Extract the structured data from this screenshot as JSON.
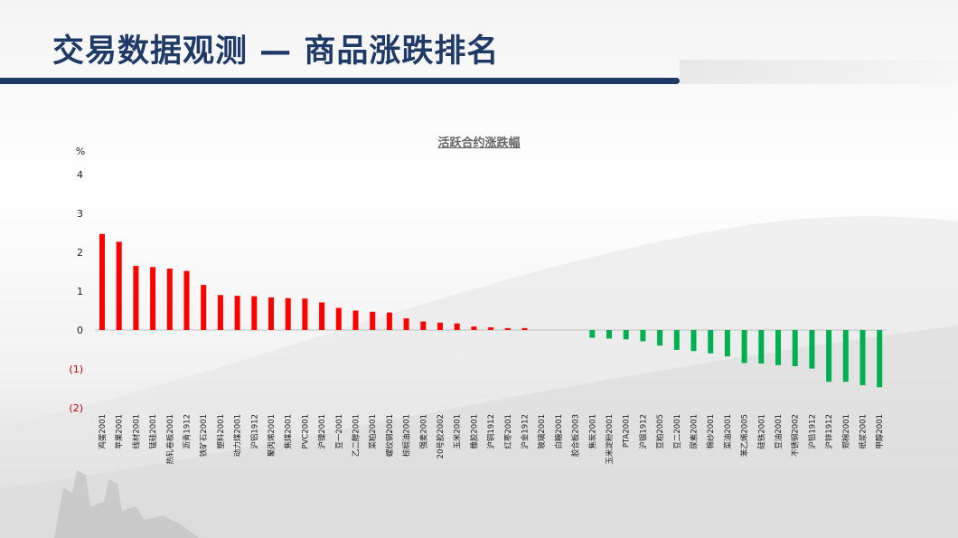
{
  "slide": {
    "title": "交易数据观测 — 商品涨跌排名"
  },
  "colors": {
    "title_blue": "#1f3a66",
    "rise_red": "#ff0000",
    "fall_green": "#00b050",
    "negative_tick": "#c00000",
    "tick_text": "#222222"
  },
  "chart_data": {
    "type": "bar",
    "title": "活跃合约涨跌幅",
    "ylabel": "%",
    "ylim": [
      -2.5,
      4.5
    ],
    "yticks": [
      4,
      3,
      2,
      1,
      0,
      -1,
      -2
    ],
    "ytick_labels": [
      "4",
      "3",
      "2",
      "1",
      "0",
      "(1)",
      "(2)"
    ],
    "grid": false,
    "legend": "none",
    "categories": [
      "鸡蛋2001",
      "苹果2001",
      "线材2001",
      "锰硅2001",
      "热轧卷板2001",
      "沥青1912",
      "铁矿石2001",
      "塑料2001",
      "动力煤2001",
      "沪铝1912",
      "聚丙烯2001",
      "焦煤2001",
      "PVC2001",
      "沪镍2001",
      "豆一2001",
      "乙二醇2001",
      "菜粕2001",
      "螺纹钢2001",
      "棕榈油2001",
      "强麦2001",
      "20号胶2002",
      "玉米2001",
      "橡胶2001",
      "沪铜1912",
      "红枣2001",
      "沪金1912",
      "玻璃2001",
      "白糖2001",
      "胶合板2003",
      "焦炭2001",
      "玉米淀粉2001",
      "PTA2001",
      "沪银1912",
      "豆粕2005",
      "豆二2001",
      "尿素2001",
      "棉纱2001",
      "菜油2001",
      "苯乙烯2005",
      "硅铁2001",
      "豆油2001",
      "不锈钢2002",
      "沪铅1912",
      "沪锌1912",
      "郑棉2001",
      "纸浆2001",
      "甲醇2001"
    ],
    "values": [
      2.47,
      2.27,
      1.65,
      1.62,
      1.58,
      1.52,
      1.16,
      0.9,
      0.88,
      0.87,
      0.84,
      0.82,
      0.81,
      0.71,
      0.57,
      0.5,
      0.47,
      0.45,
      0.3,
      0.22,
      0.19,
      0.17,
      0.09,
      0.07,
      0.05,
      0.05,
      0,
      0,
      0,
      -0.2,
      -0.22,
      -0.24,
      -0.29,
      -0.4,
      -0.51,
      -0.54,
      -0.6,
      -0.68,
      -0.85,
      -0.86,
      -0.9,
      -0.93,
      -0.99,
      -1.33,
      -1.33,
      -1.42,
      -1.47
    ]
  }
}
